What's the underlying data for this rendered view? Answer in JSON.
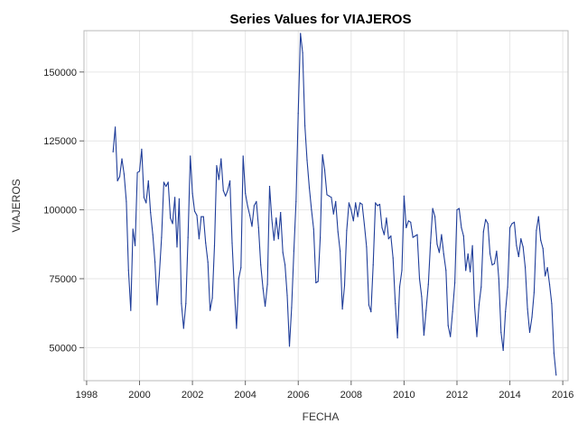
{
  "chart_data": {
    "type": "line",
    "title": "Series Values for VIAJEROS",
    "xlabel": "FECHA",
    "ylabel": "VIAJEROS",
    "xlim": [
      1997.9,
      2016.2
    ],
    "ylim": [
      38000,
      165000
    ],
    "x_ticks": [
      1998,
      2000,
      2002,
      2004,
      2006,
      2008,
      2010,
      2012,
      2014,
      2016
    ],
    "y_ticks": [
      50000,
      75000,
      100000,
      125000,
      150000
    ],
    "y_tick_labels": [
      "50000",
      "75000",
      "100000",
      "125000",
      "150000"
    ],
    "grid": true,
    "series": [
      {
        "color": "#1f3d99",
        "x": [
          1999.0,
          1999.083,
          1999.167,
          1999.25,
          1999.333,
          1999.417,
          1999.5,
          1999.583,
          1999.667,
          1999.75,
          1999.833,
          1999.917,
          2000.0,
          2000.083,
          2000.167,
          2000.25,
          2000.333,
          2000.417,
          2000.5,
          2000.583,
          2000.667,
          2000.75,
          2000.833,
          2000.917,
          2001.0,
          2001.083,
          2001.167,
          2001.25,
          2001.333,
          2001.417,
          2001.5,
          2001.583,
          2001.667,
          2001.75,
          2001.833,
          2001.917,
          2002.0,
          2002.083,
          2002.167,
          2002.25,
          2002.333,
          2002.417,
          2002.5,
          2002.583,
          2002.667,
          2002.75,
          2002.833,
          2002.917,
          2003.0,
          2003.083,
          2003.167,
          2003.25,
          2003.333,
          2003.417,
          2003.5,
          2003.583,
          2003.667,
          2003.75,
          2003.833,
          2003.917,
          2004.0,
          2004.083,
          2004.167,
          2004.25,
          2004.333,
          2004.417,
          2004.5,
          2004.583,
          2004.667,
          2004.75,
          2004.833,
          2004.917,
          2005.0,
          2005.083,
          2005.167,
          2005.25,
          2005.333,
          2005.417,
          2005.5,
          2005.583,
          2005.667,
          2005.75,
          2005.833,
          2005.917,
          2006.0,
          2006.083,
          2006.167,
          2006.25,
          2006.333,
          2006.417,
          2006.5,
          2006.583,
          2006.667,
          2006.75,
          2006.833,
          2006.917,
          2007.0,
          2007.083,
          2007.167,
          2007.25,
          2007.333,
          2007.417,
          2007.5,
          2007.583,
          2007.667,
          2007.75,
          2007.833,
          2007.917,
          2008.0,
          2008.083,
          2008.167,
          2008.25,
          2008.333,
          2008.417,
          2008.5,
          2008.583,
          2008.667,
          2008.75,
          2008.833,
          2008.917,
          2009.0,
          2009.083,
          2009.167,
          2009.25,
          2009.333,
          2009.417,
          2009.5,
          2009.583,
          2009.667,
          2009.75,
          2009.833,
          2009.917,
          2010.0,
          2010.083,
          2010.167,
          2010.25,
          2010.333,
          2010.417,
          2010.5,
          2010.583,
          2010.667,
          2010.75,
          2010.833,
          2010.917,
          2011.0,
          2011.083,
          2011.167,
          2011.25,
          2011.333,
          2011.417,
          2011.5,
          2011.583,
          2011.667,
          2011.75,
          2011.833,
          2011.917,
          2012.0,
          2012.083,
          2012.167,
          2012.25,
          2012.333,
          2012.417,
          2012.5,
          2012.583,
          2012.667,
          2012.75,
          2012.833,
          2012.917,
          2013.0,
          2013.083,
          2013.167,
          2013.25,
          2013.333,
          2013.417,
          2013.5,
          2013.583,
          2013.667,
          2013.75,
          2013.833,
          2013.917,
          2014.0,
          2014.083,
          2014.167,
          2014.25,
          2014.333,
          2014.417,
          2014.5,
          2014.583,
          2014.667,
          2014.75,
          2014.833,
          2014.917,
          2015.0,
          2015.083,
          2015.167,
          2015.25,
          2015.333,
          2015.417,
          2015.5,
          2015.583,
          2015.667,
          2015.75
        ],
        "values": [
          121000,
          130000,
          110500,
          112000,
          118500,
          113000,
          103000,
          78000,
          63500,
          93000,
          87000,
          113500,
          114000,
          122000,
          104500,
          102500,
          110500,
          99000,
          91000,
          81000,
          65500,
          77000,
          90000,
          110000,
          108500,
          110000,
          97000,
          95000,
          104500,
          86500,
          104000,
          66000,
          57000,
          66000,
          90000,
          119500,
          106000,
          99500,
          98000,
          89500,
          97500,
          97500,
          88000,
          81000,
          63500,
          68000,
          87000,
          116000,
          111000,
          118500,
          107000,
          105000,
          107000,
          110500,
          88000,
          71000,
          57000,
          75000,
          79000,
          119500,
          106000,
          101500,
          98000,
          94000,
          101500,
          103000,
          93500,
          80000,
          71500,
          65000,
          73000,
          108500,
          96500,
          89000,
          97000,
          89500,
          99000,
          84500,
          80000,
          69000,
          50500,
          64500,
          85000,
          103000,
          135000,
          164000,
          157000,
          130500,
          118000,
          108000,
          100000,
          93000,
          73500,
          74000,
          90000,
          120000,
          114500,
          105500,
          105000,
          104500,
          98500,
          103000,
          92000,
          85000,
          64000,
          72500,
          92500,
          102500,
          100000,
          96000,
          102500,
          97500,
          102500,
          102000,
          94500,
          86500,
          65500,
          63000,
          80000,
          102500,
          101500,
          102000,
          93500,
          91000,
          97000,
          89500,
          90500,
          82500,
          66000,
          53500,
          72000,
          78000,
          105000,
          93500,
          96000,
          95500,
          90000,
          90500,
          91000,
          75000,
          68500,
          54500,
          63500,
          73000,
          88000,
          100500,
          97500,
          87500,
          84500,
          91000,
          84000,
          78000,
          58000,
          54000,
          63000,
          73500,
          100000,
          100500,
          93500,
          90500,
          78000,
          84000,
          77500,
          87000,
          65000,
          54000,
          65500,
          72000,
          92000,
          96500,
          95000,
          84000,
          80000,
          80500,
          85000,
          75000,
          55500,
          49000,
          63000,
          72000,
          93500,
          95000,
          95500,
          87000,
          83000,
          89500,
          86500,
          79000,
          64000,
          55500,
          61000,
          70000,
          92500,
          97500,
          89000,
          86000,
          76000,
          79000,
          73000,
          66000,
          48000,
          40000
        ]
      }
    ]
  }
}
